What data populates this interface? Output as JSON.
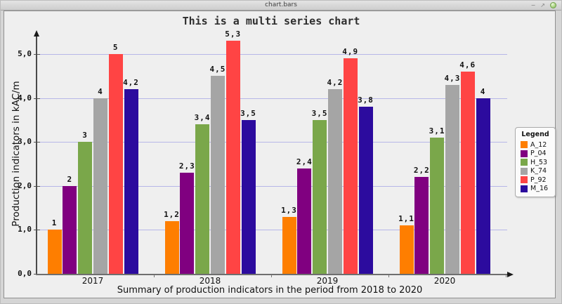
{
  "window": {
    "title": "chart.bars"
  },
  "icons": {
    "minimize_glyph": "−",
    "maximize_glyph": "↗"
  },
  "chart_data": {
    "type": "bar",
    "title": "This is a multi series chart",
    "xlabel": "Summary of production indicators in the period from 2018 to 2020",
    "ylabel": "Production indicators in kAC/m",
    "categories": [
      "2017",
      "2018",
      "2019",
      "2020"
    ],
    "series": [
      {
        "name": "A_12",
        "color": "#fe7e00",
        "values": [
          1,
          1.2,
          1.3,
          1.1
        ]
      },
      {
        "name": "P_04",
        "color": "#800080",
        "values": [
          2,
          2.3,
          2.4,
          2.2
        ]
      },
      {
        "name": "H_53",
        "color": "#7aa74a",
        "values": [
          3,
          3.4,
          3.5,
          3.1
        ]
      },
      {
        "name": "K_74",
        "color": "#a5a5a5",
        "values": [
          4,
          4.5,
          4.2,
          4.3
        ]
      },
      {
        "name": "P_92",
        "color": "#ff4444",
        "values": [
          5,
          5.3,
          4.9,
          4.6
        ]
      },
      {
        "name": "M_16",
        "color": "#2c0b9e",
        "values": [
          4.2,
          3.5,
          3.8,
          4
        ]
      }
    ],
    "value_labels": {
      "decimal_separator": ","
    },
    "yticks": [
      "0,0",
      "1,0",
      "2,0",
      "3,0",
      "4,0",
      "5,0"
    ],
    "ylim": [
      0,
      5.45
    ],
    "grid": true,
    "legend": {
      "title": "Legend",
      "position": "right"
    }
  },
  "colors": {
    "plot_bg": "#efefef",
    "grid": "#b6b6e8",
    "axis": "#555555"
  }
}
